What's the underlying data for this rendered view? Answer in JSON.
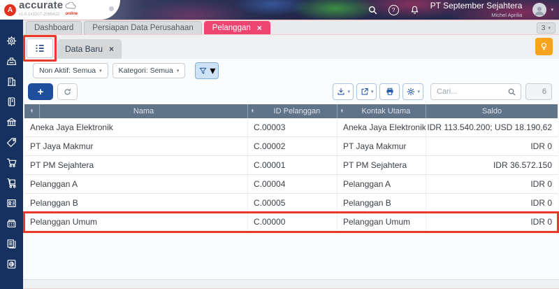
{
  "topbar": {
    "brand": "accurate",
    "brand_badge": "online",
    "version": "v1.0.1#3207-2069422",
    "logo_letter": "A",
    "company": "PT September Sejahtera",
    "user": "Michel Aprilia"
  },
  "tabstrip": {
    "tabs": [
      {
        "label": "Dashboard",
        "active": false,
        "closable": false
      },
      {
        "label": "Persiapan Data Perusahaan",
        "active": false,
        "closable": false
      },
      {
        "label": "Pelanggan",
        "active": true,
        "closable": true
      }
    ],
    "overflow_count": "3"
  },
  "sidebar": {
    "items": [
      "settings",
      "pos",
      "company",
      "journal",
      "bank",
      "sales",
      "purchases",
      "inventory",
      "contacts",
      "cashier",
      "documents",
      "reports"
    ]
  },
  "subtab": {
    "tab_label": "Data Baru"
  },
  "filters": {
    "inactive_label": "Non Aktif: Semua",
    "category_label": "Kategori: Semua"
  },
  "toolbar": {
    "search_placeholder": "Cari...",
    "record_count": "6"
  },
  "icons": {
    "close": "×",
    "chevron_down": "▾",
    "sort": "▴\n▾",
    "plus": "+",
    "help": "?"
  },
  "table": {
    "columns": [
      "Nama",
      "ID Pelanggan",
      "Kontak Utama",
      "Saldo"
    ],
    "rows": [
      {
        "nama": "Aneka Jaya Elektronik",
        "id": "C.00003",
        "kontak": "Aneka Jaya Elektronik",
        "saldo": "IDR 113.540.200; USD 18.190,62",
        "highlighted": false
      },
      {
        "nama": "PT Jaya Makmur",
        "id": "C.00002",
        "kontak": "PT Jaya Makmur",
        "saldo": "IDR 0",
        "highlighted": false
      },
      {
        "nama": "PT PM Sejahtera",
        "id": "C.00001",
        "kontak": "PT PM Sejahtera",
        "saldo": "IDR 36.572.150",
        "highlighted": false
      },
      {
        "nama": "Pelanggan A",
        "id": "C.00004",
        "kontak": "Pelanggan A",
        "saldo": "IDR 0",
        "highlighted": false
      },
      {
        "nama": "Pelanggan B",
        "id": "C.00005",
        "kontak": "Pelanggan B",
        "saldo": "IDR 0",
        "highlighted": false
      },
      {
        "nama": "Pelanggan Umum",
        "id": "C.00000",
        "kontak": "Pelanggan Umum",
        "saldo": "IDR 0",
        "highlighted": true
      }
    ]
  },
  "colors": {
    "accent_pink": "#ee4470",
    "sidebar_navy": "#16305f",
    "table_header": "#5f7389",
    "annotation_red": "#ea3829",
    "primary_blue": "#1f4e9d",
    "tip_orange": "#f7a31d"
  }
}
